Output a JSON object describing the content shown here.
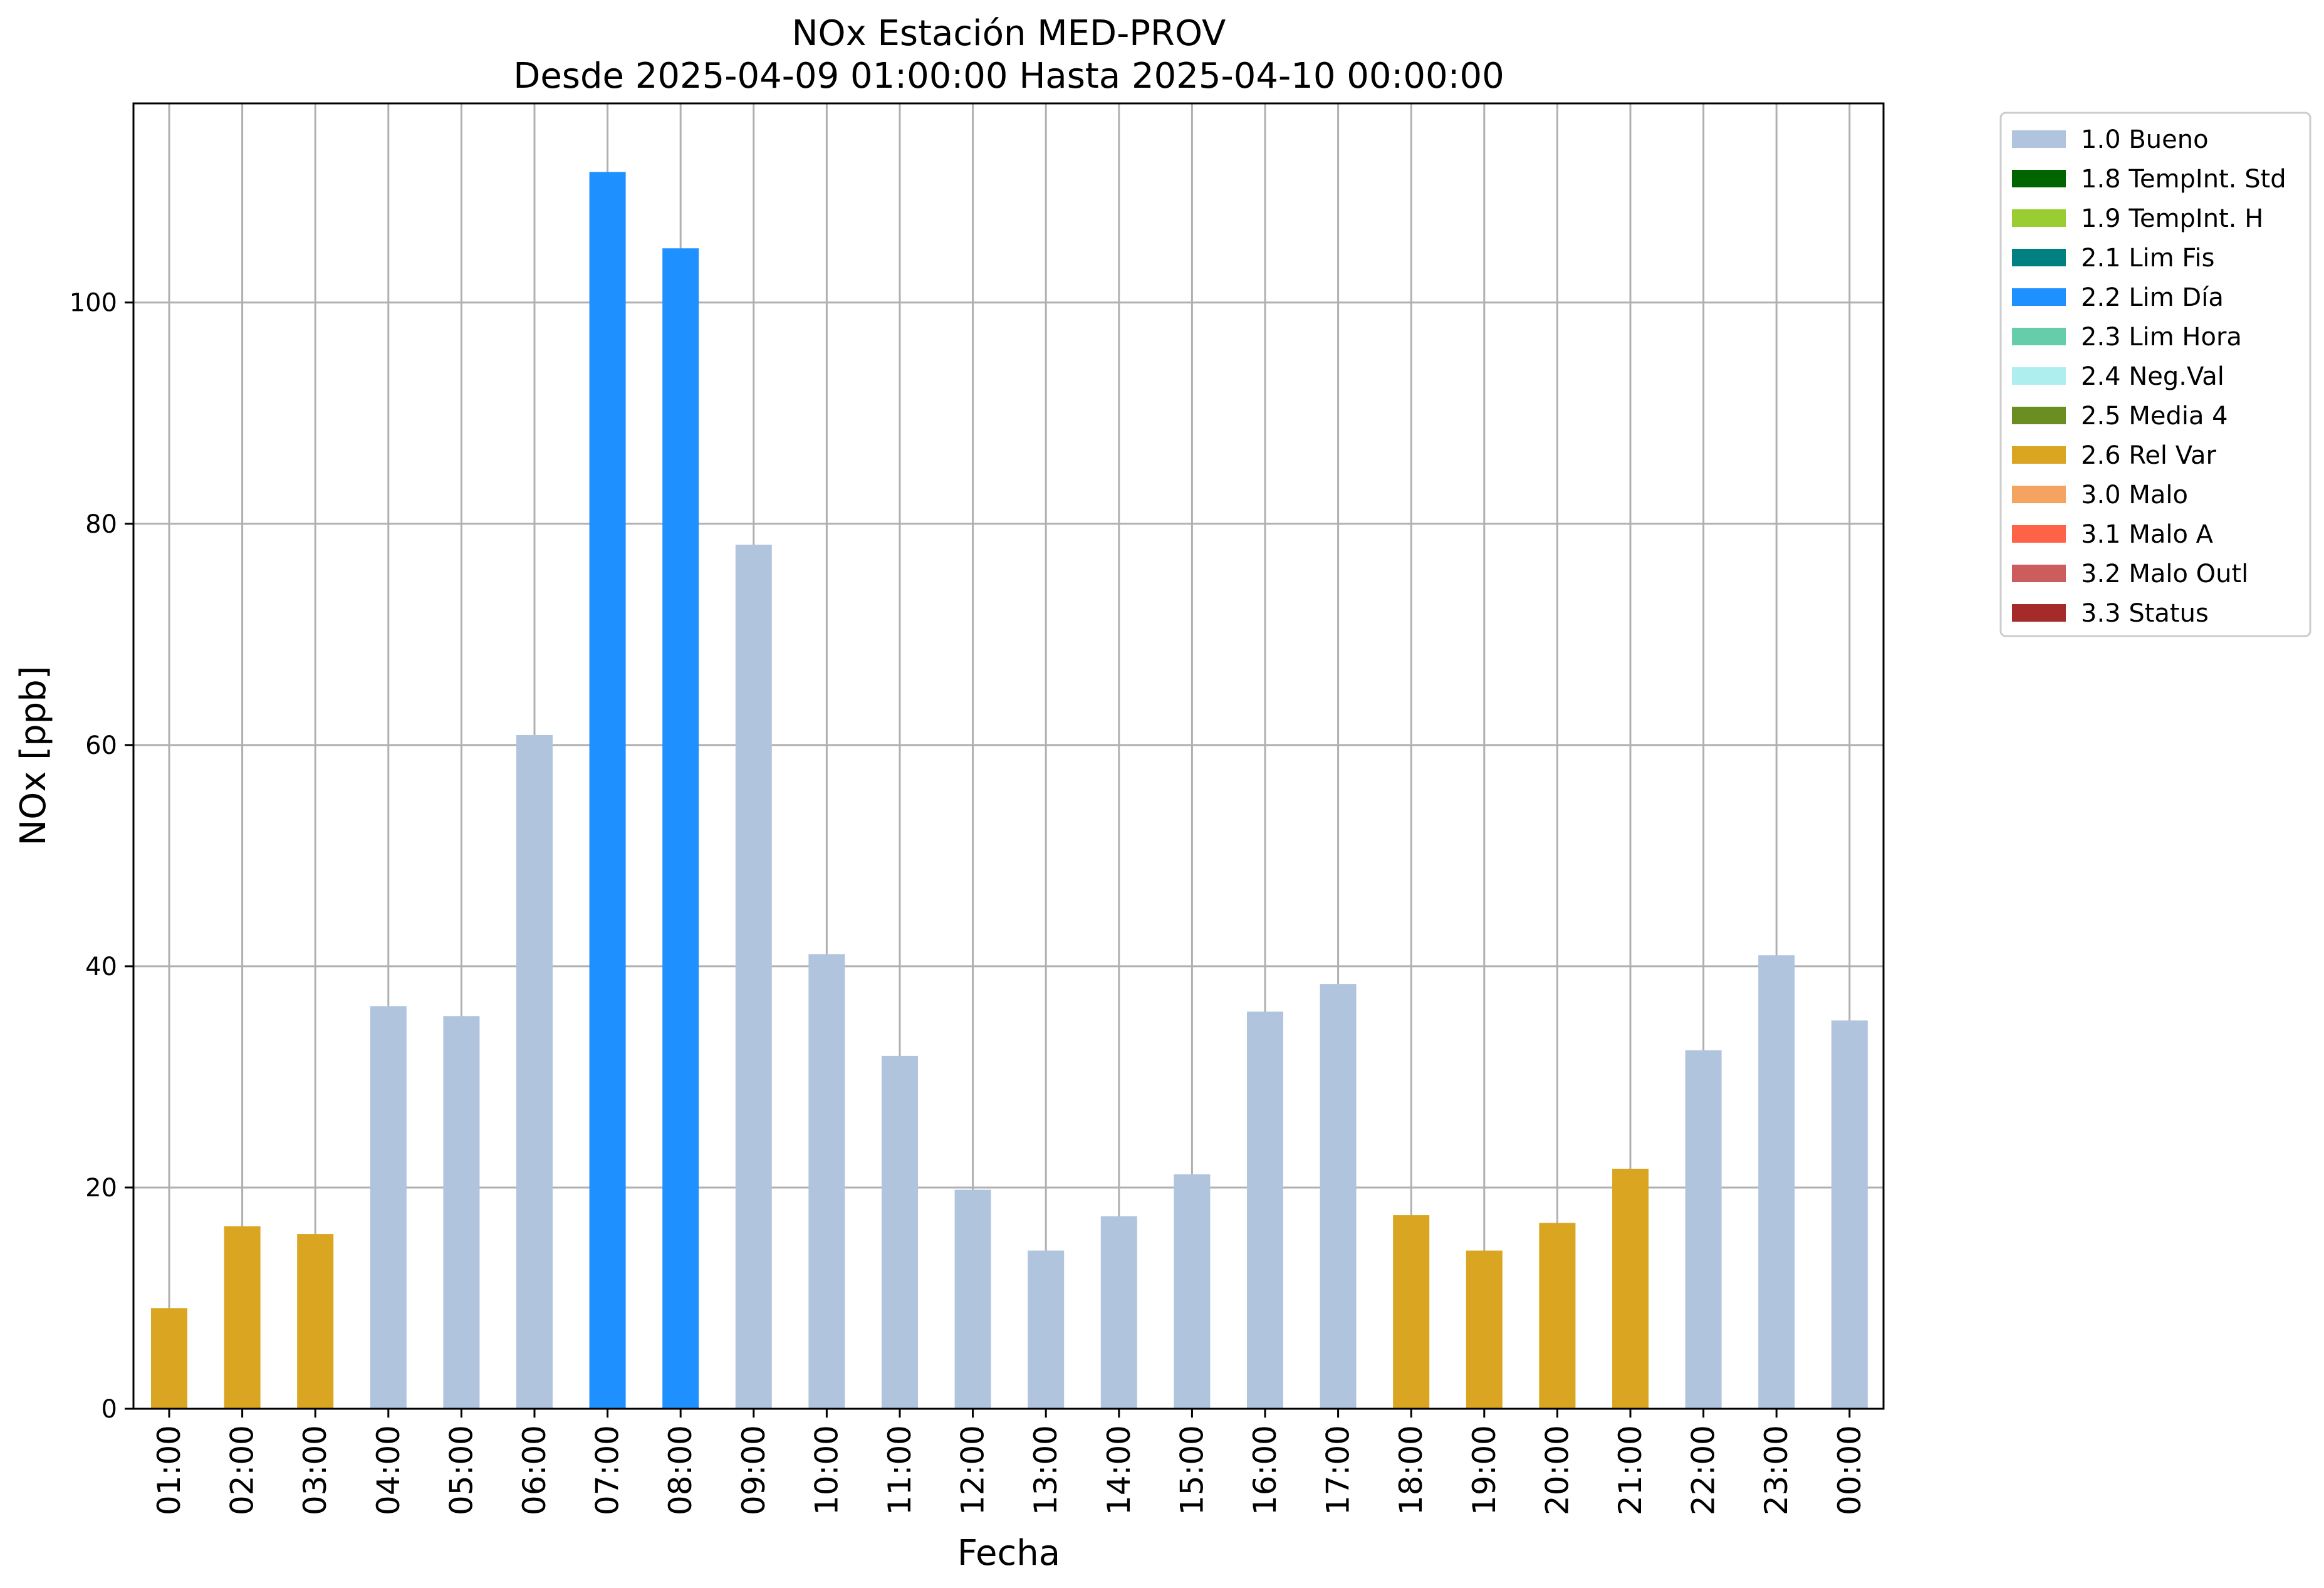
{
  "chart_data": {
    "type": "bar",
    "title": "NOx Estación MED-PROV",
    "subtitle": "Desde 2025-04-09 01:00:00 Hasta 2025-04-10 00:00:00",
    "xlabel": "Fecha",
    "ylabel": "NOx [ppb]",
    "ylim": [
      0,
      118
    ],
    "yticks": [
      "0",
      "20",
      "40",
      "60",
      "80",
      "100"
    ],
    "grid": true,
    "legend_position": "outside-right-top",
    "categories": [
      "01:00",
      "02:00",
      "03:00",
      "04:00",
      "05:00",
      "06:00",
      "07:00",
      "08:00",
      "09:00",
      "10:00",
      "11:00",
      "12:00",
      "13:00",
      "14:00",
      "15:00",
      "16:00",
      "17:00",
      "18:00",
      "19:00",
      "20:00",
      "21:00",
      "22:00",
      "23:00",
      "00:00"
    ],
    "values": [
      9.1,
      16.5,
      15.8,
      36.4,
      35.5,
      60.9,
      111.8,
      104.9,
      78.1,
      41.1,
      31.9,
      19.8,
      14.3,
      17.4,
      21.2,
      35.9,
      38.4,
      17.5,
      14.3,
      16.8,
      21.7,
      32.4,
      41.0,
      35.1
    ],
    "flags": [
      "2.6 Rel Var",
      "2.6 Rel Var",
      "2.6 Rel Var",
      "1.0 Bueno",
      "1.0 Bueno",
      "1.0 Bueno",
      "2.2 Lim Día",
      "2.2 Lim Día",
      "1.0 Bueno",
      "1.0 Bueno",
      "1.0 Bueno",
      "1.0 Bueno",
      "1.0 Bueno",
      "1.0 Bueno",
      "1.0 Bueno",
      "1.0 Bueno",
      "1.0 Bueno",
      "2.6 Rel Var",
      "2.6 Rel Var",
      "2.6 Rel Var",
      "2.6 Rel Var",
      "1.0 Bueno",
      "1.0 Bueno",
      "1.0 Bueno"
    ],
    "legend": [
      {
        "label": "1.0 Bueno",
        "color": "#b0c4de"
      },
      {
        "label": "1.8 TempInt. Std",
        "color": "#006400"
      },
      {
        "label": "1.9 TempInt. H",
        "color": "#9acd32"
      },
      {
        "label": "2.1 Lim Fis",
        "color": "#008080"
      },
      {
        "label": "2.2 Lim Día",
        "color": "#1e90ff"
      },
      {
        "label": "2.3 Lim Hora",
        "color": "#66cdaa"
      },
      {
        "label": "2.4 Neg.Val",
        "color": "#afeeee"
      },
      {
        "label": "2.5 Media 4",
        "color": "#6b8e23"
      },
      {
        "label": "2.6 Rel Var",
        "color": "#daa520"
      },
      {
        "label": "3.0 Malo",
        "color": "#f4a460"
      },
      {
        "label": "3.1 Malo A",
        "color": "#ff6347"
      },
      {
        "label": "3.2 Malo Outl",
        "color": "#cd5c5c"
      },
      {
        "label": "3.3 Status",
        "color": "#a52a2a"
      }
    ]
  }
}
